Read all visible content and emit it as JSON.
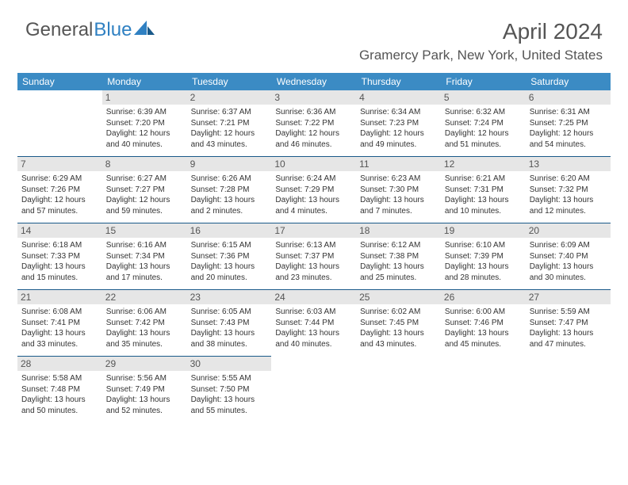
{
  "logo": {
    "text1": "General",
    "text2": "Blue"
  },
  "title": "April 2024",
  "location": "Gramercy Park, New York, United States",
  "colors": {
    "header_bg": "#3b8bc4",
    "header_fg": "#ffffff",
    "daynum_bg": "#e6e6e6",
    "row_border": "#1a5a8a",
    "logo_gray": "#555555",
    "logo_blue": "#2f80c2"
  },
  "weekdays": [
    "Sunday",
    "Monday",
    "Tuesday",
    "Wednesday",
    "Thursday",
    "Friday",
    "Saturday"
  ],
  "weeks": [
    [
      null,
      {
        "day": "1",
        "sunrise": "Sunrise: 6:39 AM",
        "sunset": "Sunset: 7:20 PM",
        "daylight1": "Daylight: 12 hours",
        "daylight2": "and 40 minutes."
      },
      {
        "day": "2",
        "sunrise": "Sunrise: 6:37 AM",
        "sunset": "Sunset: 7:21 PM",
        "daylight1": "Daylight: 12 hours",
        "daylight2": "and 43 minutes."
      },
      {
        "day": "3",
        "sunrise": "Sunrise: 6:36 AM",
        "sunset": "Sunset: 7:22 PM",
        "daylight1": "Daylight: 12 hours",
        "daylight2": "and 46 minutes."
      },
      {
        "day": "4",
        "sunrise": "Sunrise: 6:34 AM",
        "sunset": "Sunset: 7:23 PM",
        "daylight1": "Daylight: 12 hours",
        "daylight2": "and 49 minutes."
      },
      {
        "day": "5",
        "sunrise": "Sunrise: 6:32 AM",
        "sunset": "Sunset: 7:24 PM",
        "daylight1": "Daylight: 12 hours",
        "daylight2": "and 51 minutes."
      },
      {
        "day": "6",
        "sunrise": "Sunrise: 6:31 AM",
        "sunset": "Sunset: 7:25 PM",
        "daylight1": "Daylight: 12 hours",
        "daylight2": "and 54 minutes."
      }
    ],
    [
      {
        "day": "7",
        "sunrise": "Sunrise: 6:29 AM",
        "sunset": "Sunset: 7:26 PM",
        "daylight1": "Daylight: 12 hours",
        "daylight2": "and 57 minutes."
      },
      {
        "day": "8",
        "sunrise": "Sunrise: 6:27 AM",
        "sunset": "Sunset: 7:27 PM",
        "daylight1": "Daylight: 12 hours",
        "daylight2": "and 59 minutes."
      },
      {
        "day": "9",
        "sunrise": "Sunrise: 6:26 AM",
        "sunset": "Sunset: 7:28 PM",
        "daylight1": "Daylight: 13 hours",
        "daylight2": "and 2 minutes."
      },
      {
        "day": "10",
        "sunrise": "Sunrise: 6:24 AM",
        "sunset": "Sunset: 7:29 PM",
        "daylight1": "Daylight: 13 hours",
        "daylight2": "and 4 minutes."
      },
      {
        "day": "11",
        "sunrise": "Sunrise: 6:23 AM",
        "sunset": "Sunset: 7:30 PM",
        "daylight1": "Daylight: 13 hours",
        "daylight2": "and 7 minutes."
      },
      {
        "day": "12",
        "sunrise": "Sunrise: 6:21 AM",
        "sunset": "Sunset: 7:31 PM",
        "daylight1": "Daylight: 13 hours",
        "daylight2": "and 10 minutes."
      },
      {
        "day": "13",
        "sunrise": "Sunrise: 6:20 AM",
        "sunset": "Sunset: 7:32 PM",
        "daylight1": "Daylight: 13 hours",
        "daylight2": "and 12 minutes."
      }
    ],
    [
      {
        "day": "14",
        "sunrise": "Sunrise: 6:18 AM",
        "sunset": "Sunset: 7:33 PM",
        "daylight1": "Daylight: 13 hours",
        "daylight2": "and 15 minutes."
      },
      {
        "day": "15",
        "sunrise": "Sunrise: 6:16 AM",
        "sunset": "Sunset: 7:34 PM",
        "daylight1": "Daylight: 13 hours",
        "daylight2": "and 17 minutes."
      },
      {
        "day": "16",
        "sunrise": "Sunrise: 6:15 AM",
        "sunset": "Sunset: 7:36 PM",
        "daylight1": "Daylight: 13 hours",
        "daylight2": "and 20 minutes."
      },
      {
        "day": "17",
        "sunrise": "Sunrise: 6:13 AM",
        "sunset": "Sunset: 7:37 PM",
        "daylight1": "Daylight: 13 hours",
        "daylight2": "and 23 minutes."
      },
      {
        "day": "18",
        "sunrise": "Sunrise: 6:12 AM",
        "sunset": "Sunset: 7:38 PM",
        "daylight1": "Daylight: 13 hours",
        "daylight2": "and 25 minutes."
      },
      {
        "day": "19",
        "sunrise": "Sunrise: 6:10 AM",
        "sunset": "Sunset: 7:39 PM",
        "daylight1": "Daylight: 13 hours",
        "daylight2": "and 28 minutes."
      },
      {
        "day": "20",
        "sunrise": "Sunrise: 6:09 AM",
        "sunset": "Sunset: 7:40 PM",
        "daylight1": "Daylight: 13 hours",
        "daylight2": "and 30 minutes."
      }
    ],
    [
      {
        "day": "21",
        "sunrise": "Sunrise: 6:08 AM",
        "sunset": "Sunset: 7:41 PM",
        "daylight1": "Daylight: 13 hours",
        "daylight2": "and 33 minutes."
      },
      {
        "day": "22",
        "sunrise": "Sunrise: 6:06 AM",
        "sunset": "Sunset: 7:42 PM",
        "daylight1": "Daylight: 13 hours",
        "daylight2": "and 35 minutes."
      },
      {
        "day": "23",
        "sunrise": "Sunrise: 6:05 AM",
        "sunset": "Sunset: 7:43 PM",
        "daylight1": "Daylight: 13 hours",
        "daylight2": "and 38 minutes."
      },
      {
        "day": "24",
        "sunrise": "Sunrise: 6:03 AM",
        "sunset": "Sunset: 7:44 PM",
        "daylight1": "Daylight: 13 hours",
        "daylight2": "and 40 minutes."
      },
      {
        "day": "25",
        "sunrise": "Sunrise: 6:02 AM",
        "sunset": "Sunset: 7:45 PM",
        "daylight1": "Daylight: 13 hours",
        "daylight2": "and 43 minutes."
      },
      {
        "day": "26",
        "sunrise": "Sunrise: 6:00 AM",
        "sunset": "Sunset: 7:46 PM",
        "daylight1": "Daylight: 13 hours",
        "daylight2": "and 45 minutes."
      },
      {
        "day": "27",
        "sunrise": "Sunrise: 5:59 AM",
        "sunset": "Sunset: 7:47 PM",
        "daylight1": "Daylight: 13 hours",
        "daylight2": "and 47 minutes."
      }
    ],
    [
      {
        "day": "28",
        "sunrise": "Sunrise: 5:58 AM",
        "sunset": "Sunset: 7:48 PM",
        "daylight1": "Daylight: 13 hours",
        "daylight2": "and 50 minutes."
      },
      {
        "day": "29",
        "sunrise": "Sunrise: 5:56 AM",
        "sunset": "Sunset: 7:49 PM",
        "daylight1": "Daylight: 13 hours",
        "daylight2": "and 52 minutes."
      },
      {
        "day": "30",
        "sunrise": "Sunrise: 5:55 AM",
        "sunset": "Sunset: 7:50 PM",
        "daylight1": "Daylight: 13 hours",
        "daylight2": "and 55 minutes."
      },
      null,
      null,
      null,
      null
    ]
  ]
}
